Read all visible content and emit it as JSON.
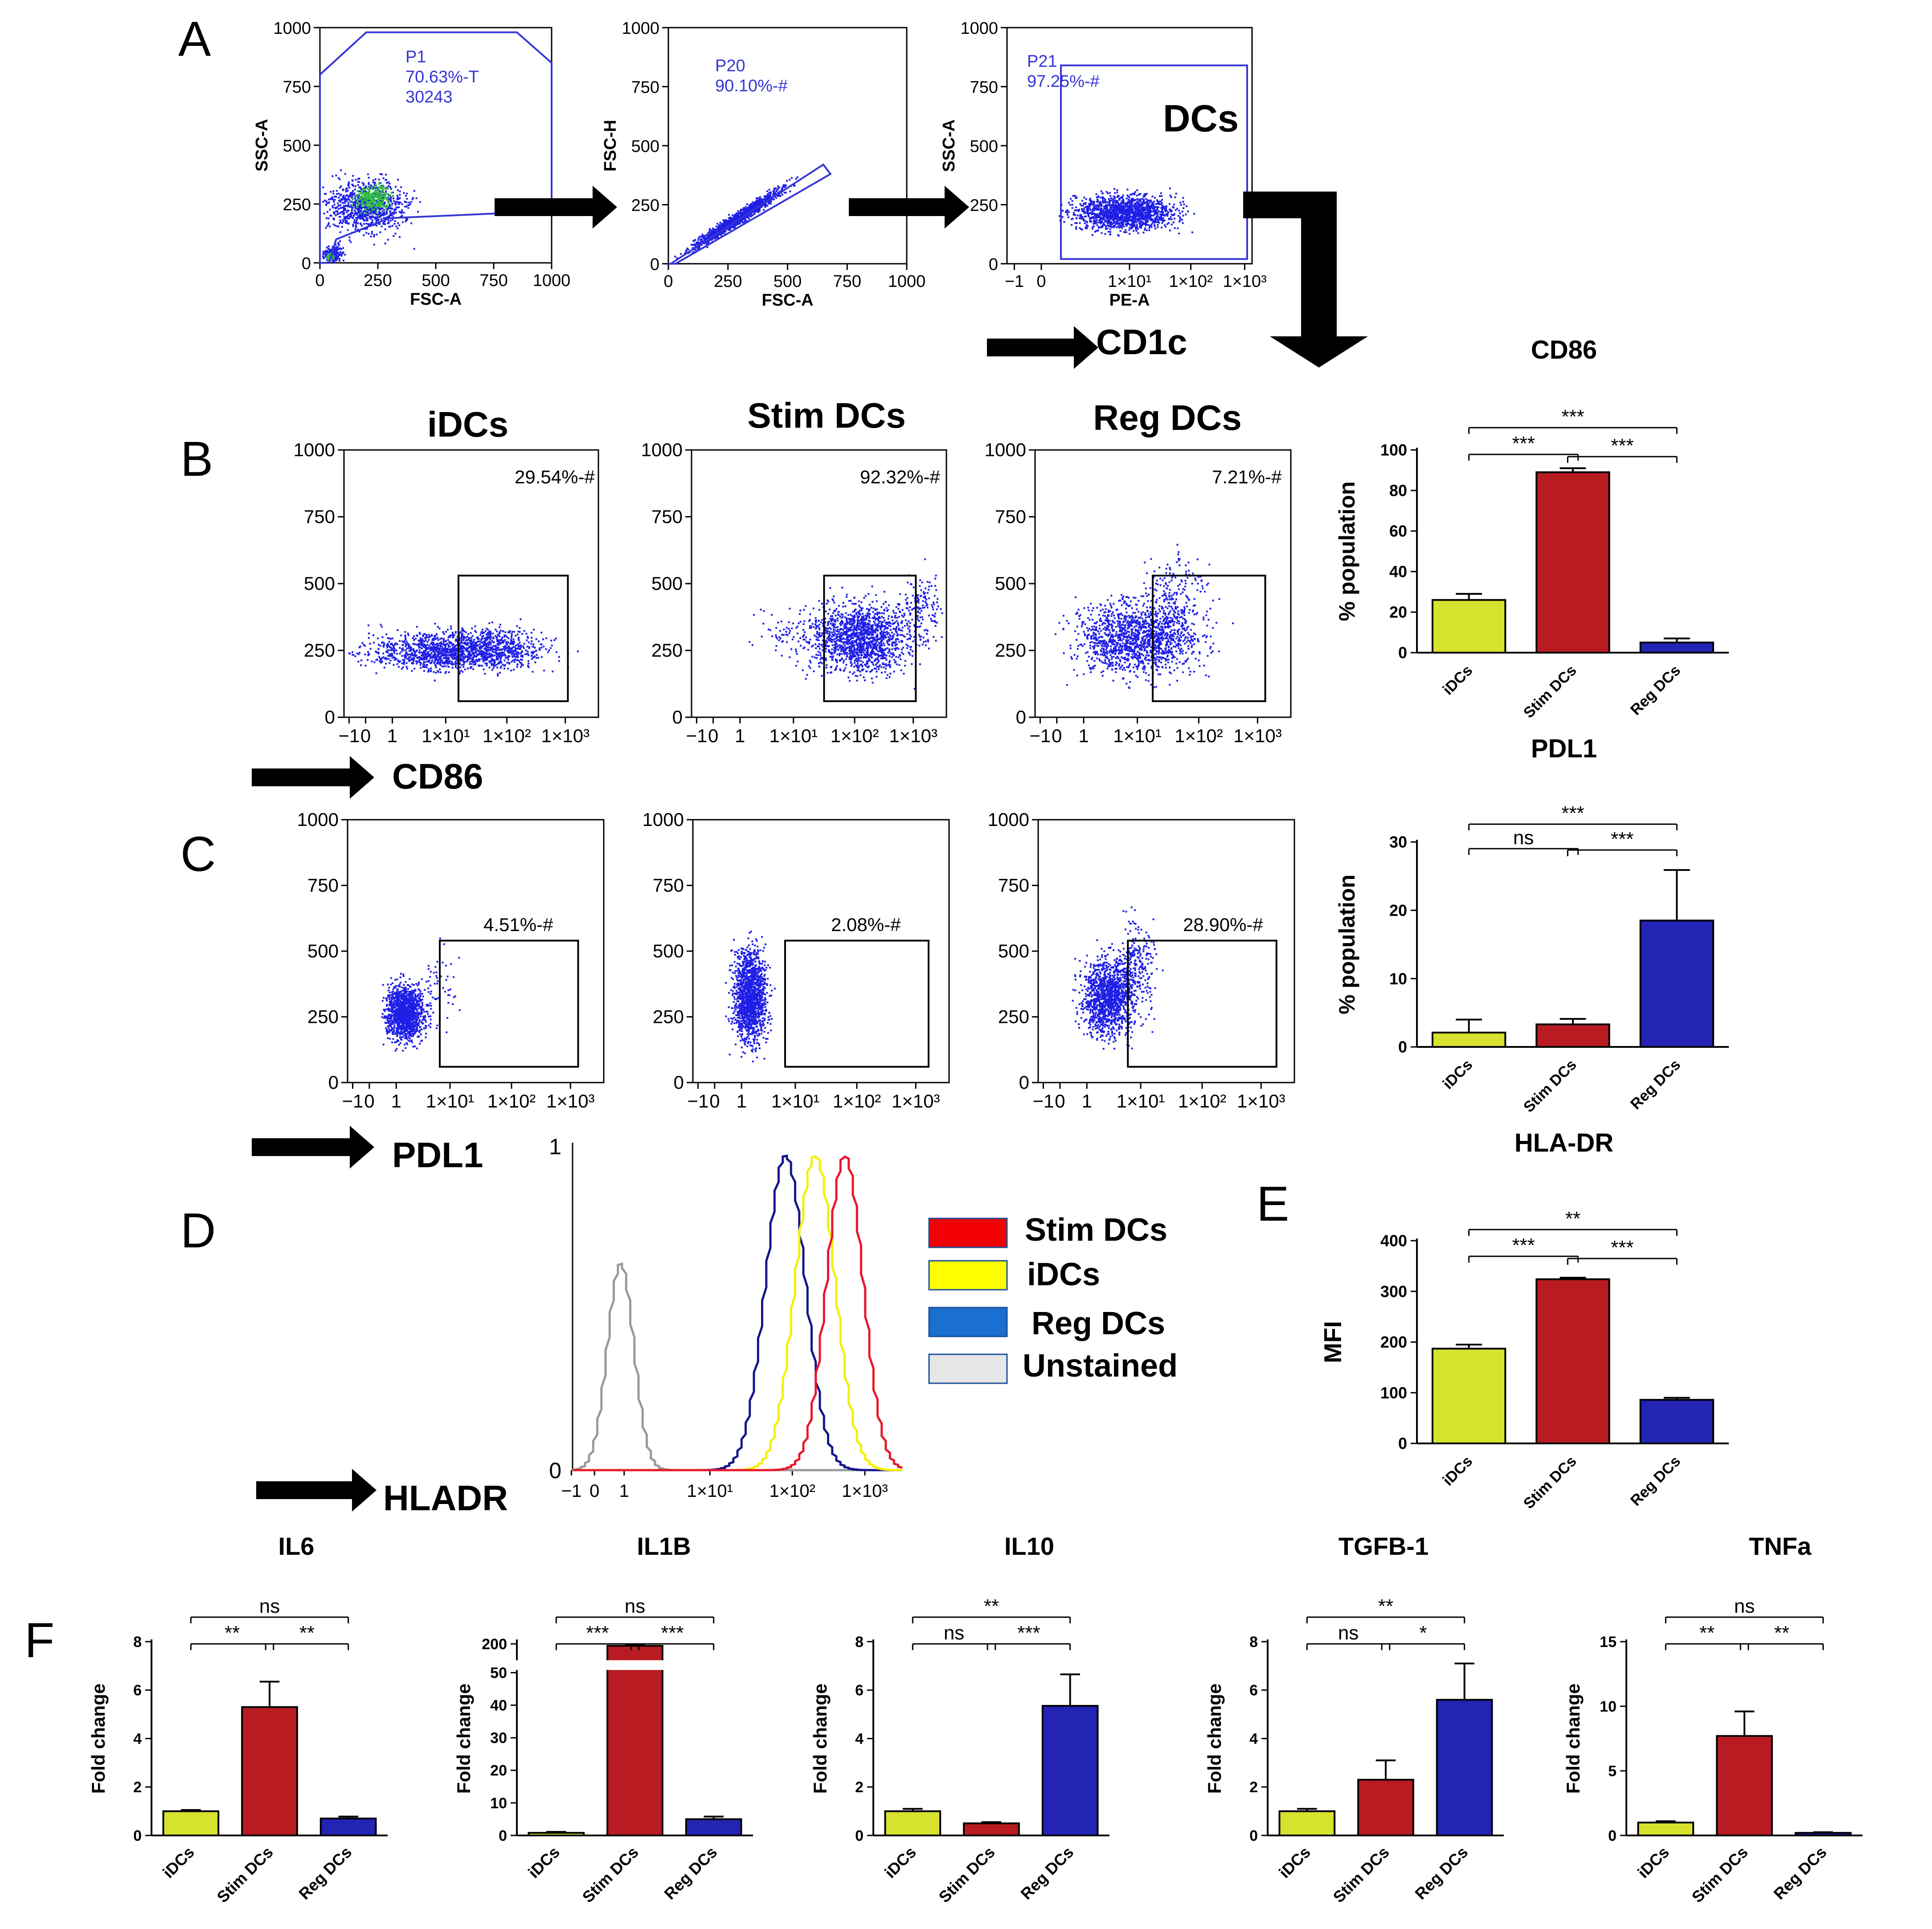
{
  "figure": {
    "panel_labels": {
      "A": "A",
      "B": "B",
      "C": "C",
      "D": "D",
      "E": "E",
      "F": "F"
    },
    "colors": {
      "idcs": "#d6e22e",
      "stim": "#b81c22",
      "reg": "#2323b4",
      "flow_dot": "#1f1fe6",
      "gate": "#3535d8",
      "arrow": "#000000",
      "unstained": "#999999",
      "stim_line": "#e8192c",
      "idc_line": "#f5f000",
      "reg_line": "#15158c",
      "leg_stim": "#f00000",
      "leg_idc": "#ffff00",
      "leg_reg": "#1a6fd0",
      "leg_unst": "#e6e6e6"
    },
    "tick_sets": {
      "lin1000": [
        "0",
        "250",
        "500",
        "750",
        "1000"
      ],
      "logx": [
        "−1",
        "0",
        "1",
        "1×10¹",
        "1×10²",
        "1×10³"
      ]
    },
    "arrow_labels": {
      "cd1c": "CD1c",
      "cd86": "CD86",
      "pdl1": "PDL1",
      "hladr": "HLADR"
    },
    "dcs_label": "DCs"
  },
  "panelA": {
    "plots": [
      {
        "id": "a1",
        "xlabel": "FSC-A",
        "ylabel": "SSC-A",
        "gate_lines": [
          "P1",
          "70.63%-T",
          "30243"
        ]
      },
      {
        "id": "a2",
        "xlabel": "FSC-A",
        "ylabel": "FSC-H",
        "gate_lines": [
          "P20",
          "90.10%-#"
        ]
      },
      {
        "id": "a3",
        "xlabel": "PE-A",
        "ylabel": "SSC-A",
        "gate_lines": [
          "P21",
          "97.25%-#"
        ]
      }
    ]
  },
  "panelB": {
    "titles": [
      "iDCs",
      "Stim DCs",
      "Reg DCs"
    ],
    "gate_pcts": [
      "29.54%-#",
      "92.32%-#",
      "7.21%-#"
    ]
  },
  "panelC": {
    "gate_pcts": [
      "4.51%-#",
      "2.08%-#",
      "28.90%-#"
    ]
  },
  "panelD": {
    "y_ticks": [
      "0",
      "1"
    ],
    "legend": [
      "Stim DCs",
      "iDCs",
      "Reg DCs",
      "Unstained"
    ]
  },
  "chart_data": [
    {
      "id": "cd86",
      "type": "bar",
      "title": "CD86",
      "ylabel": "% population",
      "categories": [
        "iDCs",
        "Stim DCs",
        "Reg DCs"
      ],
      "values": [
        26,
        89,
        5
      ],
      "errors": [
        3,
        2,
        2
      ],
      "ylim": [
        0,
        100
      ],
      "yticks": [
        "0",
        "20",
        "40",
        "60",
        "80",
        "100"
      ],
      "sig": [
        {
          "a": 0,
          "b": 1,
          "label": "***"
        },
        {
          "a": 1,
          "b": 2,
          "label": "***"
        },
        {
          "a": 0,
          "b": 2,
          "label": "***"
        }
      ]
    },
    {
      "id": "pdl1",
      "type": "bar",
      "title": "PDL1",
      "ylabel": "% population",
      "categories": [
        "iDCs",
        "Stim DCs",
        "Reg DCs"
      ],
      "values": [
        2.1,
        3.3,
        18.5
      ],
      "errors": [
        1.9,
        0.8,
        7.4
      ],
      "ylim": [
        0,
        30
      ],
      "yticks": [
        "0",
        "10",
        "20",
        "30"
      ],
      "sig": [
        {
          "a": 0,
          "b": 1,
          "label": "ns"
        },
        {
          "a": 1,
          "b": 2,
          "label": "***"
        },
        {
          "a": 0,
          "b": 2,
          "label": "***"
        }
      ]
    },
    {
      "id": "hladr",
      "type": "bar",
      "title": "HLA-DR",
      "ylabel": "MFI",
      "categories": [
        "iDCs",
        "Stim DCs",
        "Reg DCs"
      ],
      "values": [
        187,
        324,
        86
      ],
      "errors": [
        8,
        3,
        4
      ],
      "ylim": [
        0,
        400
      ],
      "yticks": [
        "0",
        "100",
        "200",
        "300",
        "400"
      ],
      "sig": [
        {
          "a": 0,
          "b": 1,
          "label": "***"
        },
        {
          "a": 1,
          "b": 2,
          "label": "***"
        },
        {
          "a": 0,
          "b": 2,
          "label": "**"
        }
      ]
    },
    {
      "id": "il6",
      "type": "bar",
      "title": "IL6",
      "ylabel": "Fold change",
      "categories": [
        "iDCs",
        "Stim DCs",
        "Reg DCs"
      ],
      "values": [
        1.0,
        5.3,
        0.7
      ],
      "errors": [
        0.05,
        1.05,
        0.08
      ],
      "ylim": [
        0,
        8
      ],
      "yticks": [
        "0",
        "2",
        "4",
        "6",
        "8"
      ],
      "sig": [
        {
          "a": 0,
          "b": 1,
          "label": "**"
        },
        {
          "a": 1,
          "b": 2,
          "label": "**"
        },
        {
          "a": 0,
          "b": 2,
          "label": "ns"
        }
      ]
    },
    {
      "id": "il1b",
      "type": "bar",
      "title": "IL1B",
      "ylabel": "Fold change",
      "categories": [
        "iDCs",
        "Stim DCs",
        "Reg DCs"
      ],
      "values": [
        0.8,
        190,
        5.0
      ],
      "errors": [
        0.3,
        8,
        0.8
      ],
      "ylim": [
        0,
        200
      ],
      "yticks": [
        "0",
        "10",
        "20",
        "30",
        "40",
        "50",
        "200"
      ],
      "axis_break": [
        50,
        200
      ],
      "sig": [
        {
          "a": 0,
          "b": 1,
          "label": "***"
        },
        {
          "a": 1,
          "b": 2,
          "label": "***"
        },
        {
          "a": 0,
          "b": 2,
          "label": "ns"
        }
      ]
    },
    {
      "id": "il10",
      "type": "bar",
      "title": "IL10",
      "ylabel": "Fold change",
      "categories": [
        "iDCs",
        "Stim DCs",
        "Reg DCs"
      ],
      "values": [
        1.0,
        0.5,
        5.35
      ],
      "errors": [
        0.1,
        0.05,
        1.3
      ],
      "ylim": [
        0,
        8
      ],
      "yticks": [
        "0",
        "2",
        "4",
        "6",
        "8"
      ],
      "sig": [
        {
          "a": 0,
          "b": 1,
          "label": "ns"
        },
        {
          "a": 1,
          "b": 2,
          "label": "***"
        },
        {
          "a": 0,
          "b": 2,
          "label": "**"
        }
      ]
    },
    {
      "id": "tgfb1",
      "type": "bar",
      "title": "TGFB-1",
      "ylabel": "Fold change",
      "categories": [
        "iDCs",
        "Stim DCs",
        "Reg DCs"
      ],
      "values": [
        1.0,
        2.3,
        5.6
      ],
      "errors": [
        0.1,
        0.8,
        1.5
      ],
      "ylim": [
        0,
        8
      ],
      "yticks": [
        "0",
        "2",
        "4",
        "6",
        "8"
      ],
      "sig": [
        {
          "a": 0,
          "b": 1,
          "label": "ns"
        },
        {
          "a": 1,
          "b": 2,
          "label": "*"
        },
        {
          "a": 0,
          "b": 2,
          "label": "**"
        }
      ]
    },
    {
      "id": "tnfa",
      "type": "bar",
      "title": "TNFa",
      "ylabel": "Fold change",
      "categories": [
        "iDCs",
        "Stim DCs",
        "Reg DCs"
      ],
      "values": [
        1.0,
        7.7,
        0.2
      ],
      "errors": [
        0.1,
        1.9,
        0.05
      ],
      "ylim": [
        0,
        15
      ],
      "yticks": [
        "0",
        "5",
        "10",
        "15"
      ],
      "sig": [
        {
          "a": 0,
          "b": 1,
          "label": "**"
        },
        {
          "a": 1,
          "b": 2,
          "label": "**"
        },
        {
          "a": 0,
          "b": 2,
          "label": "ns"
        }
      ]
    }
  ]
}
